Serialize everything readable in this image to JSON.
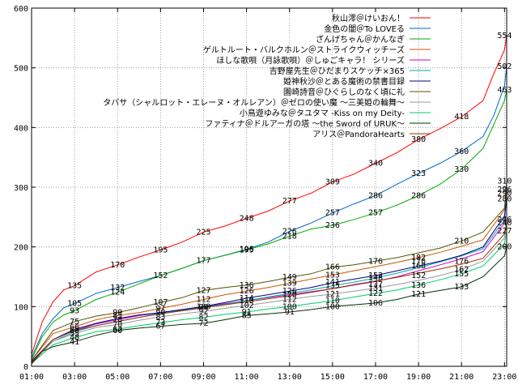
{
  "chart_data": {
    "type": "line",
    "xlabel": "",
    "ylabel": "",
    "xlim": [
      1,
      23.1
    ],
    "ylim": [
      0,
      600
    ],
    "x_ticks": [
      1,
      3,
      5,
      7,
      9,
      11,
      13,
      15,
      17,
      19,
      21,
      23
    ],
    "x_tick_labels": [
      "01:00",
      "03:00",
      "05:00",
      "07:00",
      "09:00",
      "11:00",
      "13:00",
      "15:00",
      "17:00",
      "19:00",
      "21:00",
      "23:00"
    ],
    "y_ticks": [
      0,
      100,
      200,
      300,
      400,
      500,
      600
    ],
    "y_tick_labels": [
      "0",
      "100",
      "200",
      "300",
      "400",
      "500",
      "600"
    ],
    "grid": true,
    "legend_position": "top-right",
    "series": [
      {
        "name": "秋山澪＠けいおん！",
        "color": "#ff0000",
        "x": [
          1,
          1.5,
          2,
          2.5,
          3,
          4,
          5,
          6,
          7,
          8,
          9,
          10,
          11,
          12,
          13,
          14,
          15,
          16,
          17,
          18,
          19,
          20,
          21,
          22,
          22.5,
          23,
          23.1
        ],
        "y": [
          20,
          75,
          108,
          128,
          135,
          158,
          170,
          183,
          195,
          208,
          225,
          235,
          248,
          260,
          277,
          290,
          309,
          322,
          340,
          358,
          380,
          398,
          418,
          445,
          490,
          530,
          554
        ]
      },
      {
        "name": "金色の闇＠To LOVEる",
        "color": "#0066cc",
        "x": [
          1,
          1.5,
          2,
          2.5,
          3,
          4,
          5,
          6,
          7,
          8,
          9,
          10,
          11,
          12,
          13,
          14,
          15,
          16,
          17,
          18,
          19,
          20,
          21,
          22,
          22.5,
          23,
          23.1
        ],
        "y": [
          15,
          55,
          80,
          98,
          105,
          122,
          132,
          142,
          152,
          164,
          177,
          186,
          196,
          208,
          226,
          240,
          257,
          272,
          286,
          305,
          323,
          340,
          360,
          385,
          420,
          470,
          502
        ]
      },
      {
        "name": "ざんげちゃん＠かんなぎ",
        "color": "#00aa00",
        "x": [
          1,
          1.5,
          2,
          2.5,
          3,
          4,
          5,
          6,
          7,
          8,
          9,
          10,
          11,
          12,
          13,
          14,
          15,
          16,
          17,
          18,
          19,
          20,
          21,
          22,
          22.5,
          23,
          23.1
        ],
        "y": [
          12,
          50,
          74,
          86,
          93,
          112,
          124,
          138,
          152,
          164,
          177,
          186,
          195,
          205,
          218,
          230,
          236,
          246,
          257,
          270,
          286,
          305,
          330,
          365,
          405,
          445,
          463
        ]
      },
      {
        "name": "ゲルトルート・バルクホルン＠ストライクウィッチーズ",
        "color": "#cc5500",
        "x": [
          1,
          2,
          3,
          4,
          5,
          6,
          7,
          8,
          9,
          10,
          11,
          12,
          13,
          14,
          15,
          16,
          17,
          18,
          19,
          20,
          21,
          22,
          23,
          23.1
        ],
        "y": [
          10,
          55,
          66,
          78,
          85,
          90,
          97,
          104,
          112,
          120,
          126,
          132,
          139,
          146,
          153,
          160,
          167,
          174,
          182,
          191,
          201,
          212,
          262,
          310
        ]
      },
      {
        "name": "ほしな歌唄（月詠歌唄）＠しゅごキャラ！ シリーズ",
        "color": "#cc00cc",
        "x": [
          1,
          2,
          3,
          4,
          5,
          6,
          7,
          8,
          9,
          10,
          11,
          12,
          13,
          14,
          15,
          16,
          17,
          18,
          19,
          20,
          21,
          22,
          23,
          23.1
        ],
        "y": [
          8,
          45,
          60,
          71,
          78,
          85,
          90,
          95,
          100,
          105,
          110,
          115,
          120,
          125,
          130,
          136,
          142,
          150,
          160,
          170,
          180,
          192,
          240,
          290
        ]
      },
      {
        "name": "吉野屋先生＠ひだまりスケッチ×365",
        "color": "#00aaaa",
        "x": [
          1,
          2,
          3,
          4,
          5,
          6,
          7,
          8,
          9,
          10,
          11,
          12,
          13,
          14,
          15,
          16,
          17,
          18,
          19,
          20,
          21,
          22,
          23,
          23.1
        ],
        "y": [
          8,
          42,
          58,
          68,
          75,
          82,
          89,
          94,
          99,
          104,
          110,
          116,
          122,
          128,
          135,
          141,
          148,
          156,
          165,
          175,
          185,
          197,
          245,
          300
        ]
      },
      {
        "name": "姫神秋沙＠とある魔術の禁書目録",
        "color": "#000080",
        "x": [
          1,
          2,
          3,
          4,
          5,
          6,
          7,
          8,
          9,
          10,
          11,
          12,
          13,
          14,
          15,
          16,
          17,
          18,
          19,
          20,
          21,
          22,
          23,
          23.1
        ],
        "y": [
          8,
          45,
          62,
          72,
          80,
          86,
          90,
          95,
          100,
          107,
          114,
          120,
          126,
          132,
          140,
          146,
          152,
          160,
          168,
          176,
          186,
          200,
          252,
          280
        ]
      },
      {
        "name": "園崎詩音＠ひぐらしのなく頃に礼",
        "color": "#555500",
        "x": [
          1,
          2,
          3,
          4,
          5,
          6,
          7,
          8,
          9,
          10,
          11,
          12,
          13,
          14,
          15,
          16,
          17,
          18,
          19,
          20,
          21,
          22,
          23,
          23.1
        ],
        "y": [
          10,
          60,
          75,
          84,
          90,
          98,
          107,
          115,
          127,
          132,
          136,
          142,
          149,
          155,
          166,
          170,
          176,
          182,
          190,
          198,
          210,
          225,
          265,
          296
        ]
      },
      {
        "name": "タバサ（シャルロット・エレーヌ・オルレアン）＠ゼロの使い魔 ～三美姫の輪舞～",
        "color": "#999999",
        "x": [
          1,
          2,
          3,
          4,
          5,
          6,
          7,
          8,
          9,
          10,
          11,
          12,
          13,
          14,
          15,
          16,
          17,
          18,
          19,
          20,
          21,
          22,
          23,
          23.1
        ],
        "y": [
          6,
          42,
          55,
          65,
          70,
          77,
          83,
          88,
          92,
          97,
          102,
          107,
          112,
          117,
          121,
          126,
          131,
          137,
          144,
          152,
          162,
          176,
          215,
          246
        ]
      },
      {
        "name": "小鳥遊ゆみな＠タユタマ -Kiss on my Deity-",
        "color": "#00cc66",
        "x": [
          1,
          2,
          3,
          4,
          5,
          6,
          7,
          8,
          9,
          10,
          11,
          12,
          13,
          14,
          15,
          16,
          17,
          18,
          19,
          20,
          21,
          22,
          23,
          23.1
        ],
        "y": [
          5,
          36,
          48,
          58,
          62,
          68,
          73,
          78,
          82,
          87,
          91,
          96,
          100,
          105,
          110,
          116,
          122,
          128,
          136,
          145,
          155,
          168,
          205,
          227
        ]
      },
      {
        "name": "ファティナ＠ドルアーガの塔 ～the Sword of URUK～",
        "color": "#003300",
        "x": [
          1,
          1.5,
          2,
          3,
          4,
          5,
          6,
          7,
          8,
          9,
          10,
          11,
          12,
          13,
          14,
          15,
          16,
          17,
          18,
          19,
          20,
          21,
          22,
          23,
          23.1
        ],
        "y": [
          4,
          25,
          33,
          41,
          52,
          60,
          64,
          67,
          70,
          72,
          78,
          85,
          88,
          91,
          95,
          100,
          103,
          106,
          112,
          121,
          127,
          133,
          150,
          185,
          200
        ]
      },
      {
        "name": "アリス＠PandoraHearts",
        "color": "#993300",
        "x": [
          1,
          2,
          3,
          4,
          5,
          6,
          7,
          8,
          9,
          10,
          11,
          12,
          13,
          14,
          15,
          16,
          17,
          18,
          19,
          20,
          21,
          22,
          23,
          23.1
        ],
        "y": [
          6,
          45,
          60,
          68,
          75,
          82,
          88,
          93,
          98,
          103,
          108,
          113,
          118,
          124,
          130,
          137,
          143,
          149,
          156,
          163,
          171,
          181,
          222,
          240
        ]
      }
    ],
    "labeled_points": [
      {
        "x": 3,
        "y": 135,
        "text": "135"
      },
      {
        "x": 5,
        "y": 170,
        "text": "170"
      },
      {
        "x": 7,
        "y": 195,
        "text": "195"
      },
      {
        "x": 9,
        "y": 225,
        "text": "225"
      },
      {
        "x": 11,
        "y": 248,
        "text": "248"
      },
      {
        "x": 13,
        "y": 277,
        "text": "277"
      },
      {
        "x": 15,
        "y": 309,
        "text": "309"
      },
      {
        "x": 17,
        "y": 340,
        "text": "340"
      },
      {
        "x": 19,
        "y": 380,
        "text": "380"
      },
      {
        "x": 21,
        "y": 418,
        "text": "418"
      },
      {
        "x": 23,
        "y": 554,
        "text": "554"
      },
      {
        "x": 3,
        "y": 105,
        "text": "105"
      },
      {
        "x": 5,
        "y": 132,
        "text": "132"
      },
      {
        "x": 7,
        "y": 152,
        "text": "152"
      },
      {
        "x": 9,
        "y": 177,
        "text": "177"
      },
      {
        "x": 11,
        "y": 196,
        "text": "196"
      },
      {
        "x": 13,
        "y": 226,
        "text": "226"
      },
      {
        "x": 15,
        "y": 257,
        "text": "257"
      },
      {
        "x": 17,
        "y": 286,
        "text": "286"
      },
      {
        "x": 19,
        "y": 323,
        "text": "323"
      },
      {
        "x": 21,
        "y": 360,
        "text": "360"
      },
      {
        "x": 23,
        "y": 502,
        "text": "502"
      },
      {
        "x": 3,
        "y": 93,
        "text": "93"
      },
      {
        "x": 5,
        "y": 124,
        "text": "124"
      },
      {
        "x": 11,
        "y": 195,
        "text": "195"
      },
      {
        "x": 13,
        "y": 218,
        "text": "218"
      },
      {
        "x": 15,
        "y": 236,
        "text": "236"
      },
      {
        "x": 17,
        "y": 257,
        "text": "257"
      },
      {
        "x": 19,
        "y": 286,
        "text": "286"
      },
      {
        "x": 21,
        "y": 330,
        "text": "330"
      },
      {
        "x": 23,
        "y": 463,
        "text": "463"
      },
      {
        "x": 9,
        "y": 127,
        "text": "127"
      },
      {
        "x": 11,
        "y": 136,
        "text": "136"
      },
      {
        "x": 13,
        "y": 149,
        "text": "149"
      },
      {
        "x": 15,
        "y": 166,
        "text": "166"
      },
      {
        "x": 17,
        "y": 176,
        "text": "176"
      },
      {
        "x": 19,
        "y": 182,
        "text": "182"
      },
      {
        "x": 23,
        "y": 310,
        "text": "310"
      },
      {
        "x": 23,
        "y": 296,
        "text": "296"
      },
      {
        "x": 23,
        "y": 290,
        "text": "290"
      },
      {
        "x": 23,
        "y": 280,
        "text": "280"
      },
      {
        "x": 23,
        "y": 246,
        "text": "246"
      },
      {
        "x": 23,
        "y": 240,
        "text": "240"
      },
      {
        "x": 23,
        "y": 227,
        "text": "227"
      },
      {
        "x": 23,
        "y": 200,
        "text": "200"
      },
      {
        "x": 21,
        "y": 210,
        "text": "210"
      },
      {
        "x": 21,
        "y": 176,
        "text": "176"
      },
      {
        "x": 21,
        "y": 162,
        "text": "162"
      },
      {
        "x": 21,
        "y": 155,
        "text": "155"
      },
      {
        "x": 21,
        "y": 133,
        "text": "133"
      },
      {
        "x": 19,
        "y": 176,
        "text": "176"
      },
      {
        "x": 19,
        "y": 168,
        "text": "168"
      },
      {
        "x": 19,
        "y": 152,
        "text": "152"
      },
      {
        "x": 19,
        "y": 136,
        "text": "136"
      },
      {
        "x": 19,
        "y": 121,
        "text": "121"
      },
      {
        "x": 17,
        "y": 152,
        "text": "152"
      },
      {
        "x": 17,
        "y": 148,
        "text": "148"
      },
      {
        "x": 17,
        "y": 137,
        "text": "137"
      },
      {
        "x": 17,
        "y": 131,
        "text": "131"
      },
      {
        "x": 17,
        "y": 122,
        "text": "122"
      },
      {
        "x": 17,
        "y": 106,
        "text": "106"
      },
      {
        "x": 15,
        "y": 153,
        "text": "153"
      },
      {
        "x": 15,
        "y": 141,
        "text": "141"
      },
      {
        "x": 15,
        "y": 135,
        "text": "135"
      },
      {
        "x": 15,
        "y": 121,
        "text": "121"
      },
      {
        "x": 15,
        "y": 110,
        "text": "110"
      },
      {
        "x": 15,
        "y": 100,
        "text": "100"
      },
      {
        "x": 13,
        "y": 139,
        "text": "139"
      },
      {
        "x": 13,
        "y": 126,
        "text": "126"
      },
      {
        "x": 13,
        "y": 120,
        "text": "120"
      },
      {
        "x": 13,
        "y": 112,
        "text": "112"
      },
      {
        "x": 13,
        "y": 100,
        "text": "100"
      },
      {
        "x": 13,
        "y": 91,
        "text": "91"
      },
      {
        "x": 11,
        "y": 126,
        "text": "126"
      },
      {
        "x": 11,
        "y": 114,
        "text": "114"
      },
      {
        "x": 11,
        "y": 110,
        "text": "110"
      },
      {
        "x": 11,
        "y": 102,
        "text": "102"
      },
      {
        "x": 11,
        "y": 91,
        "text": "91"
      },
      {
        "x": 11,
        "y": 85,
        "text": "85"
      },
      {
        "x": 9,
        "y": 112,
        "text": "112"
      },
      {
        "x": 9,
        "y": 100,
        "text": "100"
      },
      {
        "x": 9,
        "y": 99,
        "text": "99"
      },
      {
        "x": 9,
        "y": 92,
        "text": "92"
      },
      {
        "x": 9,
        "y": 82,
        "text": "82"
      },
      {
        "x": 9,
        "y": 72,
        "text": "72"
      },
      {
        "x": 7,
        "y": 107,
        "text": "107"
      },
      {
        "x": 7,
        "y": 97,
        "text": "97"
      },
      {
        "x": 7,
        "y": 90,
        "text": "90"
      },
      {
        "x": 7,
        "y": 83,
        "text": "83"
      },
      {
        "x": 7,
        "y": 73,
        "text": "73"
      },
      {
        "x": 7,
        "y": 67,
        "text": "67"
      },
      {
        "x": 5,
        "y": 90,
        "text": "90"
      },
      {
        "x": 5,
        "y": 85,
        "text": "85"
      },
      {
        "x": 5,
        "y": 78,
        "text": "78"
      },
      {
        "x": 5,
        "y": 70,
        "text": "70"
      },
      {
        "x": 5,
        "y": 62,
        "text": "62"
      },
      {
        "x": 5,
        "y": 60,
        "text": "60"
      },
      {
        "x": 3,
        "y": 75,
        "text": "75"
      },
      {
        "x": 3,
        "y": 66,
        "text": "66"
      },
      {
        "x": 3,
        "y": 60,
        "text": "60"
      },
      {
        "x": 3,
        "y": 55,
        "text": "55"
      },
      {
        "x": 3,
        "y": 48,
        "text": "48"
      },
      {
        "x": 3,
        "y": 41,
        "text": "41"
      }
    ]
  }
}
